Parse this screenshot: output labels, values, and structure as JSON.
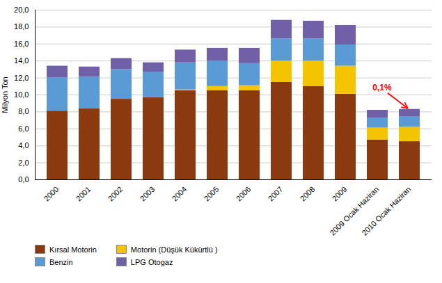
{
  "chart_data": {
    "type": "bar",
    "stacked": true,
    "categories": [
      "2000",
      "2001",
      "2002",
      "2003",
      "2004",
      "2005",
      "2006",
      "2007",
      "2008",
      "2009",
      "2009 Ocak Haziran",
      "2010 Ocak Haziran"
    ],
    "series": [
      {
        "name": "Kırsal Motorin",
        "color": "#8B3A0F",
        "values": [
          8.1,
          8.4,
          9.5,
          9.7,
          10.5,
          10.5,
          10.5,
          11.5,
          11.0,
          10.1,
          4.7,
          4.5
        ]
      },
      {
        "name": "Motorin (Düşük Kükürtlü )",
        "color": "#F5C400",
        "values": [
          0.0,
          0.0,
          0.0,
          0.0,
          0.1,
          0.5,
          0.6,
          2.5,
          3.0,
          3.3,
          1.4,
          1.7
        ]
      },
      {
        "name": "Benzin",
        "color": "#5B9BD5",
        "values": [
          3.9,
          3.7,
          3.5,
          3.0,
          3.2,
          3.0,
          2.6,
          2.6,
          2.6,
          2.5,
          1.2,
          1.2
        ]
      },
      {
        "name": "LPG Otogaz",
        "color": "#7060A8",
        "values": [
          1.4,
          1.2,
          1.3,
          1.1,
          1.5,
          1.5,
          1.8,
          2.2,
          2.1,
          2.3,
          0.9,
          0.9
        ]
      }
    ],
    "ylabel": "Milyon Ton",
    "ylim": [
      0,
      20
    ],
    "yticks": [
      {
        "value": 0,
        "label": "0,0"
      },
      {
        "value": 2,
        "label": "2,0"
      },
      {
        "value": 4,
        "label": "4,0"
      },
      {
        "value": 6,
        "label": "6,0"
      },
      {
        "value": 8,
        "label": "8,0"
      },
      {
        "value": 10,
        "label": "10,0"
      },
      {
        "value": 12,
        "label": "12,0"
      },
      {
        "value": 14,
        "label": "14,0"
      },
      {
        "value": 16,
        "label": "16,0"
      },
      {
        "value": 18,
        "label": "18,0"
      },
      {
        "value": 20,
        "label": "20,0"
      }
    ],
    "grid": true,
    "legend": "bottom",
    "annotation": "0,1%"
  }
}
